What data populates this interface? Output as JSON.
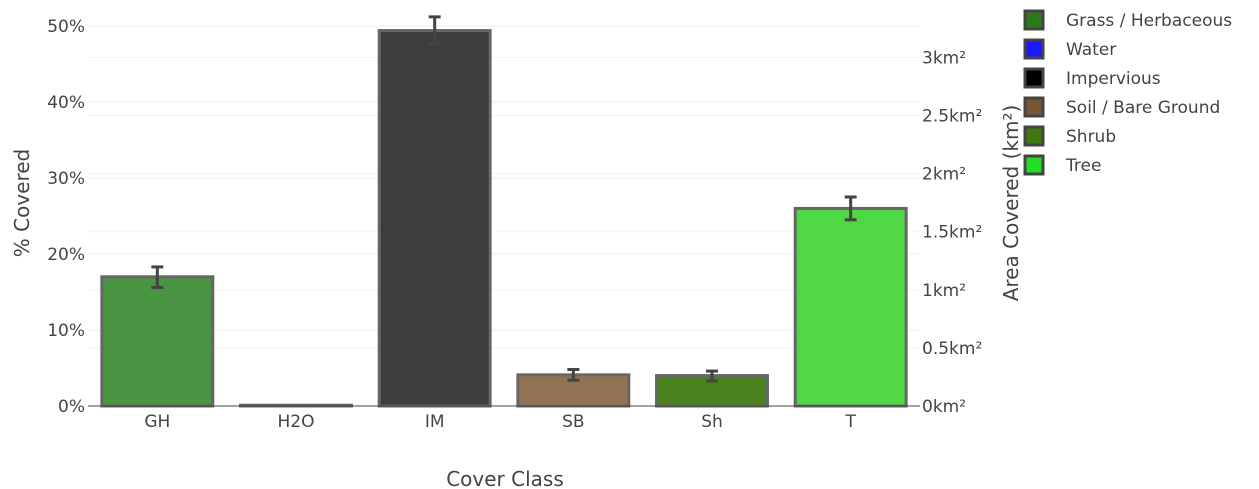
{
  "chart_data": {
    "type": "bar",
    "xlabel": "Cover Class",
    "ylabel": "% Covered",
    "y2label": "Area Covered (km²)",
    "categories": [
      "GH",
      "H2O",
      "IM",
      "SB",
      "Sh",
      "T"
    ],
    "values": [
      17.0,
      0.1,
      49.4,
      4.1,
      4.0,
      26.0
    ],
    "error_low": [
      15.6,
      0.1,
      47.7,
      3.4,
      3.3,
      24.5
    ],
    "error_high": [
      18.3,
      0.1,
      51.2,
      4.8,
      4.6,
      27.5
    ],
    "bar_colors": [
      "#3f8f3a",
      "#1a1aff",
      "#333333",
      "#8b6a4a",
      "#3f7a10",
      "#47d63a"
    ],
    "ylim": [
      0,
      50
    ],
    "y_ticks": [
      "0%",
      "10%",
      "20%",
      "30%",
      "40%",
      "50%"
    ],
    "y_tick_values": [
      0,
      10,
      20,
      30,
      40,
      50
    ],
    "y2lim": [
      0,
      3.27
    ],
    "y2_ticks": [
      "0km²",
      "0.5km²",
      "1km²",
      "1.5km²",
      "2km²",
      "2.5km²",
      "3km²"
    ],
    "y2_tick_values": [
      0,
      0.5,
      1,
      1.5,
      2,
      2.5,
      3
    ],
    "grid": true,
    "legend_position": "top-right",
    "legend": [
      {
        "name": "Grass / Herbaceous",
        "color": "#2a7a1a"
      },
      {
        "name": "Water",
        "color": "#1a1aff"
      },
      {
        "name": "Impervious",
        "color": "#000000"
      },
      {
        "name": "Soil / Bare Ground",
        "color": "#7a5533"
      },
      {
        "name": "Shrub",
        "color": "#3f7a10"
      },
      {
        "name": "Tree",
        "color": "#22dd22"
      }
    ]
  }
}
